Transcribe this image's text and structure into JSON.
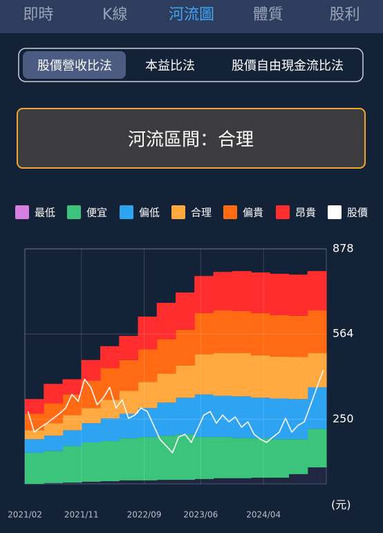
{
  "tabs": [
    "即時",
    "K線",
    "河流圖",
    "體質",
    "股利"
  ],
  "active_tab": 2,
  "methods": {
    "options": [
      "股價營收比法",
      "本益比法",
      "股價自由現金流比法"
    ],
    "selected": 0
  },
  "status": {
    "text": "河流區間：合理"
  },
  "chart_data": {
    "type": "area",
    "stacked": true,
    "step": true,
    "grid": true,
    "y_unit": "(元)",
    "categories": [
      "2021/02",
      null,
      null,
      null,
      null,
      null,
      null,
      null,
      null,
      "2021/11",
      null,
      null,
      null,
      null,
      null,
      null,
      null,
      null,
      null,
      "2022/09",
      null,
      null,
      null,
      null,
      null,
      null,
      null,
      null,
      "2023/06",
      null,
      null,
      null,
      null,
      null,
      null,
      null,
      null,
      null,
      "2024/04",
      null,
      null,
      null,
      null,
      null,
      null,
      null,
      null,
      null
    ],
    "ylim": [
      11,
      878
    ],
    "yticks": [
      250,
      564,
      878
    ],
    "series": [
      {
        "name": "最低",
        "color": "#d77fe0",
        "values": [
          11,
          11,
          11,
          14,
          14,
          14,
          16,
          16,
          16,
          19,
          19,
          19,
          21,
          21,
          21,
          24,
          24,
          24,
          24,
          24,
          24,
          26,
          26,
          26,
          26,
          26,
          26,
          29,
          29,
          29,
          32,
          32,
          32,
          32,
          32,
          32,
          34,
          34,
          34,
          34,
          34,
          34,
          47,
          47,
          47,
          72,
          72,
          72
        ]
      },
      {
        "name": "便宜",
        "color": "#3cc47c",
        "values": [
          115,
          115,
          115,
          119,
          119,
          119,
          135,
          135,
          135,
          145,
          145,
          145,
          148,
          148,
          148,
          155,
          155,
          155,
          160,
          160,
          160,
          163,
          163,
          163,
          168,
          168,
          168,
          155,
          155,
          155,
          152,
          152,
          152,
          149,
          149,
          149,
          145,
          145,
          145,
          142,
          142,
          142,
          129,
          129,
          129,
          142,
          142,
          142
        ]
      },
      {
        "name": "偏低",
        "color": "#2ea3f2",
        "values": [
          50,
          50,
          50,
          56,
          56,
          56,
          58,
          58,
          58,
          71,
          71,
          71,
          84,
          84,
          84,
          91,
          91,
          91,
          107,
          107,
          107,
          122,
          122,
          122,
          135,
          135,
          135,
          157,
          157,
          157,
          152,
          152,
          152,
          153,
          153,
          153,
          150,
          150,
          150,
          150,
          150,
          150,
          148,
          148,
          148,
          153,
          153,
          153
        ]
      },
      {
        "name": "合理",
        "color": "#ffa940",
        "values": [
          33,
          33,
          33,
          46,
          46,
          46,
          56,
          56,
          56,
          56,
          56,
          56,
          68,
          68,
          68,
          84,
          84,
          84,
          96,
          96,
          96,
          107,
          107,
          107,
          119,
          119,
          119,
          148,
          148,
          148,
          158,
          158,
          158,
          160,
          160,
          160,
          157,
          157,
          157,
          155,
          155,
          155,
          155,
          155,
          155,
          127,
          127,
          127
        ]
      },
      {
        "name": "偏貴",
        "color": "#ff6a13",
        "values": [
          61,
          61,
          61,
          73,
          73,
          73,
          76,
          76,
          76,
          101,
          101,
          101,
          117,
          117,
          117,
          114,
          114,
          114,
          120,
          120,
          120,
          127,
          127,
          127,
          132,
          132,
          132,
          152,
          152,
          152,
          157,
          157,
          157,
          155,
          155,
          155,
          155,
          155,
          155,
          153,
          153,
          153,
          152,
          152,
          152,
          157,
          157,
          157
        ]
      },
      {
        "name": "昂貴",
        "color": "#ff2d2d",
        "values": [
          54,
          54,
          54,
          72,
          72,
          72,
          56,
          56,
          56,
          76,
          76,
          76,
          81,
          81,
          81,
          89,
          89,
          89,
          121,
          121,
          121,
          134,
          134,
          134,
          137,
          137,
          137,
          137,
          137,
          137,
          142,
          142,
          142,
          147,
          147,
          147,
          150,
          150,
          150,
          152,
          152,
          152,
          152,
          152,
          152,
          145,
          145,
          145
        ]
      },
      {
        "name": "股價",
        "color": "#ffffff",
        "type": "line",
        "values": [
          278,
          202,
          220,
          235,
          253,
          270,
          291,
          341,
          316,
          397,
          367,
          303,
          329,
          367,
          291,
          321,
          253,
          265,
          291,
          278,
          227,
          176,
          151,
          126,
          184,
          194,
          164,
          214,
          265,
          278,
          235,
          265,
          240,
          258,
          220,
          240,
          194,
          176,
          164,
          184,
          202,
          253,
          202,
          227,
          240,
          303,
          367,
          430
        ]
      }
    ]
  }
}
